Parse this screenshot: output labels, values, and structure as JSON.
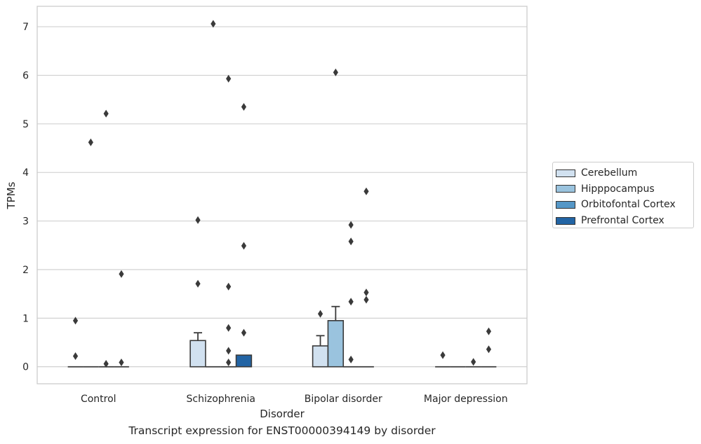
{
  "chart_data": {
    "type": "bar",
    "style": "grouped bar with error bars and outlier points",
    "xlabel": "Disorder",
    "ylabel": "TPMs",
    "caption": "Transcript expression for ENST00000394149 by disorder",
    "categories": [
      "Control",
      "Schizophrenia",
      "Bipolar disorder",
      "Major depression"
    ],
    "yticks": [
      0,
      1,
      2,
      3,
      4,
      5,
      6,
      7
    ],
    "ylim": [
      -0.35,
      7.42
    ],
    "grid": "horizontal",
    "legend_position": "right",
    "series": [
      {
        "name": "Cerebellum",
        "color": "#d1e1f0",
        "values": [
          0,
          0.54,
          0.43,
          0
        ],
        "error_upper": [
          0,
          0.7,
          0.64,
          0
        ],
        "outliers": [
          [
            0.95,
            0.22
          ],
          [
            3.02,
            1.71
          ],
          [
            1.09
          ],
          [
            0.24
          ]
        ]
      },
      {
        "name": "Hipppocampus",
        "color": "#9ac3de",
        "values": [
          0,
          0,
          0.95,
          0
        ],
        "error_upper": [
          0,
          0,
          1.24,
          0
        ],
        "outliers": [
          [
            4.62
          ],
          [
            7.06
          ],
          [
            6.06
          ],
          []
        ]
      },
      {
        "name": "Orbitofontal Cortex",
        "color": "#5597c7",
        "values": [
          0,
          0,
          0,
          0
        ],
        "error_upper": [
          0,
          0,
          0,
          0
        ],
        "outliers": [
          [
            5.21,
            0.06
          ],
          [
            5.93,
            1.65,
            0.8,
            0.33,
            0.09
          ],
          [
            2.92,
            2.58,
            1.34,
            0.15
          ],
          [
            0.1
          ]
        ]
      },
      {
        "name": "Prefrontal Cortex",
        "color": "#2264a4",
        "values": [
          0,
          0.24,
          0,
          0
        ],
        "error_upper": [
          0,
          0,
          0,
          0
        ],
        "outliers": [
          [
            1.91,
            0.09
          ],
          [
            5.35,
            2.49,
            0.7
          ],
          [
            3.61,
            1.53,
            1.38
          ],
          [
            0.73,
            0.36
          ]
        ]
      }
    ]
  }
}
